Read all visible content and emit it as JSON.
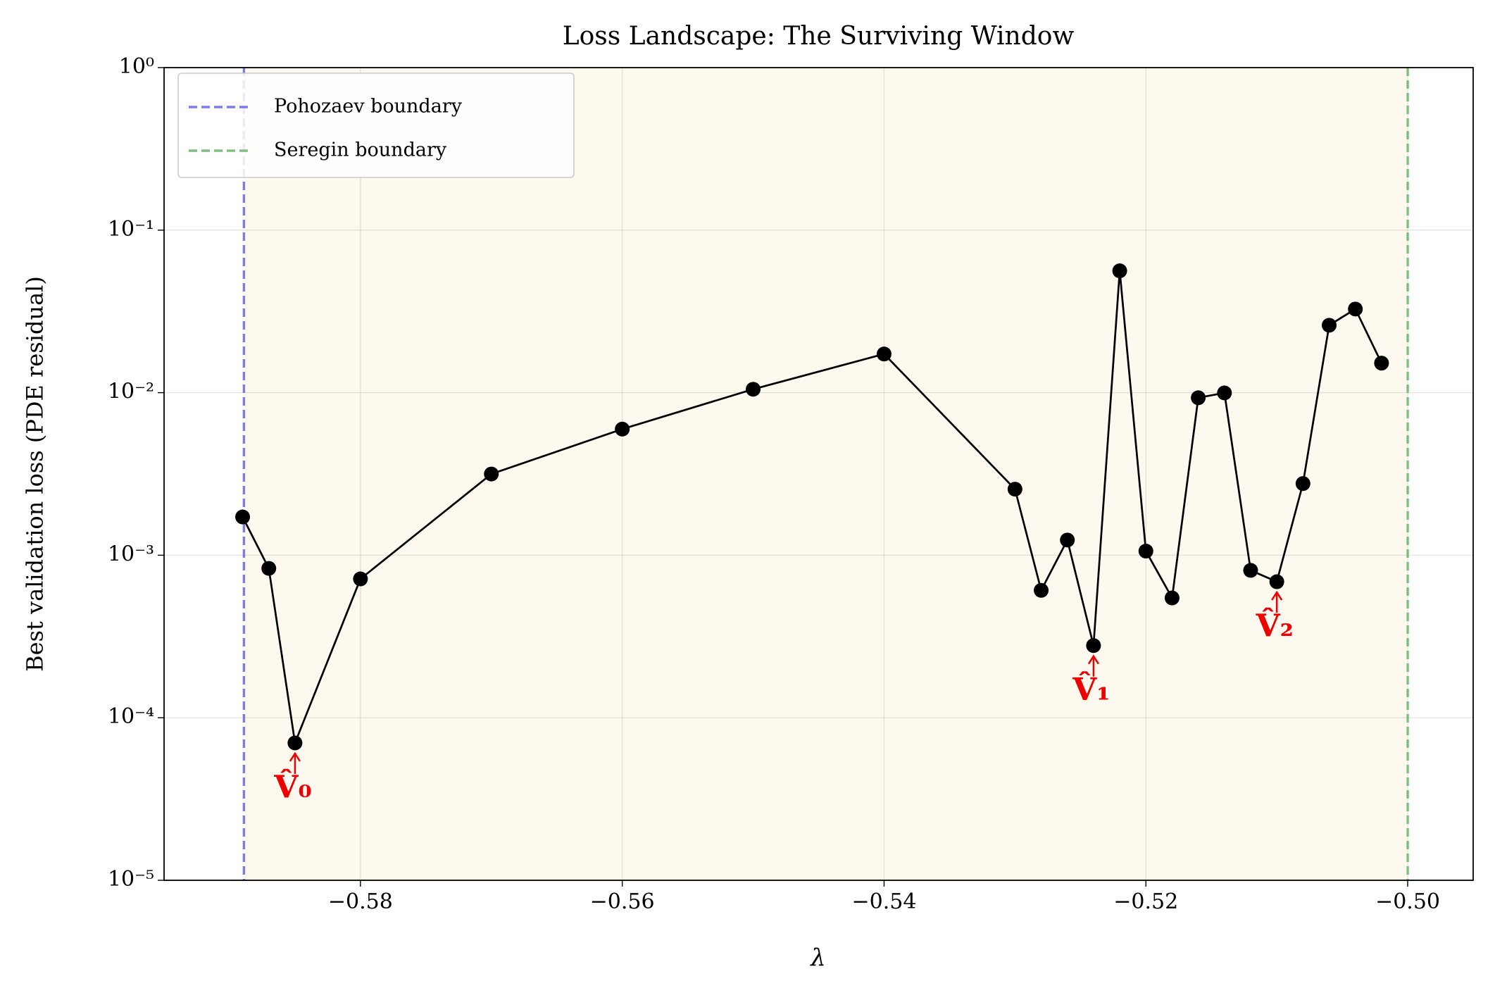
{
  "chart_data": {
    "type": "line",
    "title": "Loss Landscape: The Surviving Window",
    "xlabel": "λ",
    "ylabel": "Best validation loss (PDE residual)",
    "x": [
      -0.589,
      -0.587,
      -0.585,
      -0.58,
      -0.57,
      -0.56,
      -0.55,
      -0.54,
      -0.53,
      -0.528,
      -0.526,
      -0.524,
      -0.522,
      -0.52,
      -0.518,
      -0.516,
      -0.514,
      -0.512,
      -0.51,
      -0.508,
      -0.506,
      -0.504,
      -0.502
    ],
    "series": [
      {
        "name": "Best validation loss",
        "color": "#000000",
        "values": [
          0.00172,
          0.00083,
          7e-05,
          0.000715,
          0.00316,
          0.00597,
          0.0105,
          0.0173,
          0.00255,
          0.000608,
          0.00124,
          0.000278,
          0.0562,
          0.00106,
          0.000546,
          0.00931,
          0.00997,
          0.000807,
          0.000687,
          0.00276,
          0.026,
          0.0327,
          0.0152
        ]
      }
    ],
    "xlim": [
      -0.595,
      -0.495
    ],
    "xticks": [
      {
        "value": -0.58,
        "label": "−0.58"
      },
      {
        "value": -0.56,
        "label": "−0.56"
      },
      {
        "value": -0.54,
        "label": "−0.54"
      },
      {
        "value": -0.52,
        "label": "−0.52"
      },
      {
        "value": -0.5,
        "label": "−0.50"
      }
    ],
    "ylim": [
      1e-05,
      1
    ],
    "yticks": [
      {
        "value": 1e-05,
        "label": "10⁻⁵"
      },
      {
        "value": 0.0001,
        "label": "10⁻⁴"
      },
      {
        "value": 0.001,
        "label": "10⁻³"
      },
      {
        "value": 0.01,
        "label": "10⁻²"
      },
      {
        "value": 0.1,
        "label": "10⁻¹"
      },
      {
        "value": 1,
        "label": "10⁰"
      }
    ],
    "log_y": true,
    "grid": true,
    "legend_position": "upper left",
    "boundaries": [
      {
        "name": "Pohozaev boundary",
        "x": -0.5889,
        "color": "#7b7bef"
      },
      {
        "name": "Seregin boundary",
        "x": -0.5,
        "color": "#7fbf7f"
      }
    ],
    "window_color": "#fef9ef",
    "annotations": [
      {
        "text": "V̂₀",
        "x": -0.585,
        "y": 7e-05,
        "color": "#ee0000"
      },
      {
        "text": "V̂₁",
        "x": -0.524,
        "y": 0.000278,
        "color": "#ee0000"
      },
      {
        "text": "V̂₂",
        "x": -0.51,
        "y": 0.000687,
        "color": "#ee0000"
      }
    ]
  }
}
